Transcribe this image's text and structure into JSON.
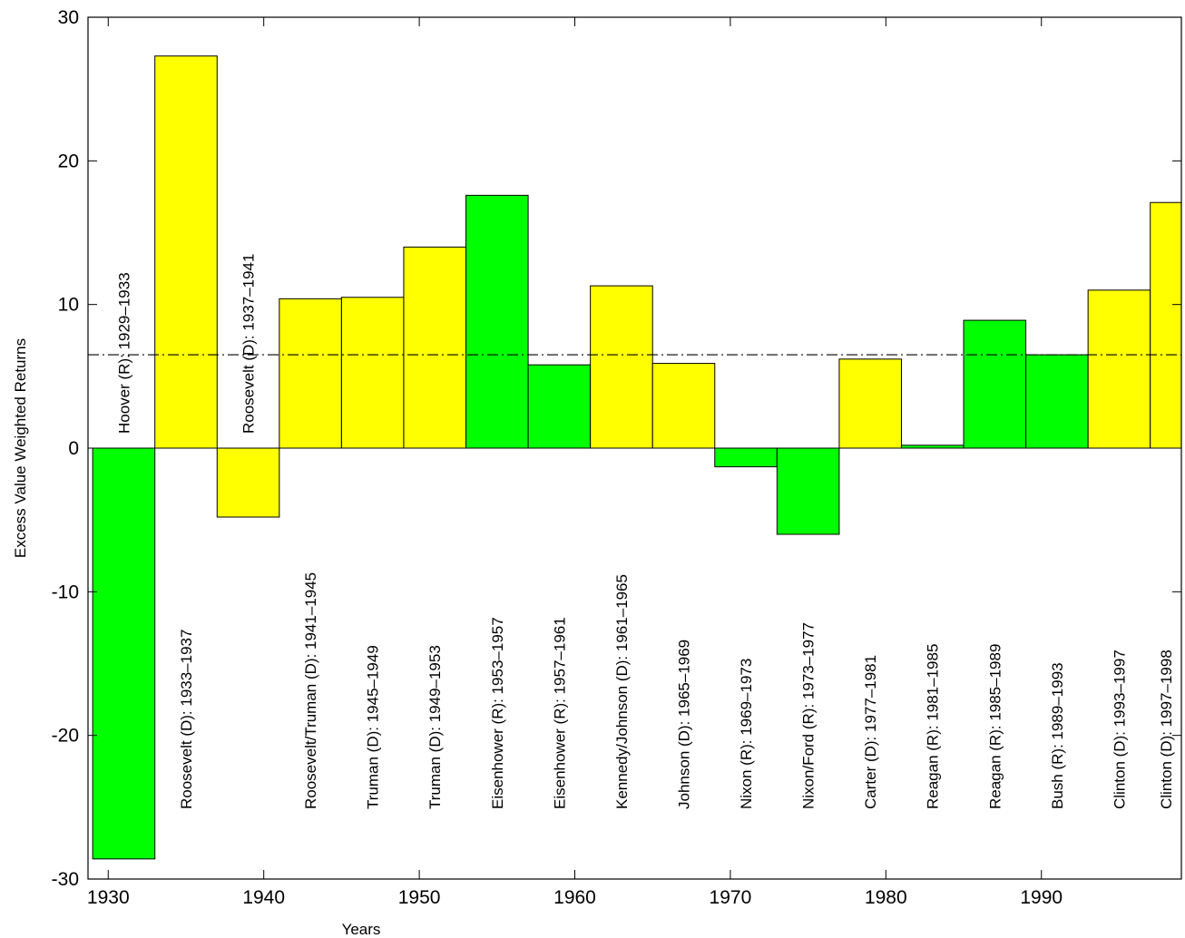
{
  "chart_data": {
    "type": "bar",
    "x_label": "Years",
    "y_label": "Excess Value Weighted Returns",
    "categories": [
      "Hoover (R): 1929–1933",
      "Roosevelt (D): 1933–1937",
      "Roosevelt (D): 1937–1941",
      "Roosevelt/Truman (D): 1941–1945",
      "Truman (D): 1945–1949",
      "Truman (D): 1949–1953",
      "Eisenhower (R): 1953–1957",
      "Eisenhower (R): 1957–1961",
      "Kennedy/Johnson (D): 1961–1965",
      "Johnson (D): 1965–1969",
      "Nixon (R): 1969–1973",
      "Nixon/Ford (R): 1973–1977",
      "Carter (D): 1977–1981",
      "Reagan (R): 1981–1985",
      "Reagan (R): 1985–1989",
      "Bush (R): 1989–1993",
      "Clinton (D): 1993–1997",
      "Clinton (D): 1997–1998"
    ],
    "bins": [
      1929,
      1933,
      1937,
      1941,
      1945,
      1949,
      1953,
      1957,
      1961,
      1965,
      1969,
      1973,
      1977,
      1981,
      1985,
      1989,
      1993,
      1997,
      1999
    ],
    "values": [
      -28.6,
      27.3,
      -4.8,
      10.4,
      10.5,
      14.0,
      17.6,
      5.8,
      11.3,
      5.9,
      -1.3,
      -6.0,
      6.2,
      0.2,
      8.9,
      6.5,
      11.0,
      17.1
    ],
    "colors": [
      "#00ff00",
      "#ffff00",
      "#ffff00",
      "#ffff00",
      "#ffff00",
      "#ffff00",
      "#00ff00",
      "#00ff00",
      "#ffff00",
      "#ffff00",
      "#00ff00",
      "#00ff00",
      "#ffff00",
      "#00ff00",
      "#00ff00",
      "#00ff00",
      "#ffff00",
      "#ffff00"
    ],
    "reference_line": 6.5,
    "xlim": [
      1928.7,
      1999
    ],
    "xticks": [
      1930,
      1940,
      1950,
      1960,
      1970,
      1980,
      1990
    ],
    "ylim": [
      -30,
      30
    ],
    "yticks": [
      -30,
      -20,
      -10,
      0,
      10,
      20,
      30
    ]
  }
}
